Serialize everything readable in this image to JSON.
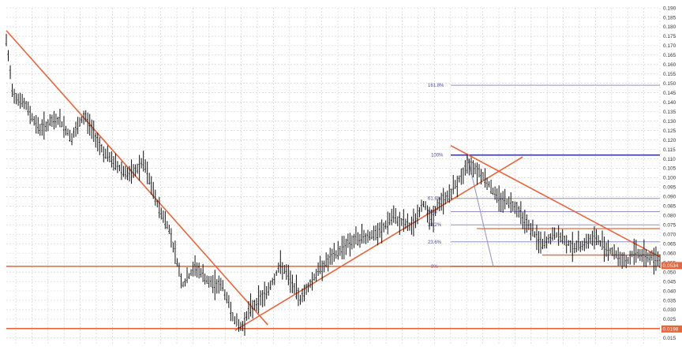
{
  "chart_data": {
    "type": "ohlc",
    "title": "",
    "xlabel": "",
    "ylabel": "",
    "ylim": [
      0.012,
      0.19
    ],
    "grid": true,
    "y_ticks": [
      0.19,
      0.185,
      0.18,
      0.175,
      0.17,
      0.165,
      0.16,
      0.155,
      0.15,
      0.145,
      0.14,
      0.135,
      0.13,
      0.125,
      0.12,
      0.115,
      0.11,
      0.105,
      0.1,
      0.095,
      0.09,
      0.085,
      0.08,
      0.075,
      0.07,
      0.065,
      0.06,
      0.055,
      0.05,
      0.045,
      0.04,
      0.035,
      0.03,
      0.025,
      0.02,
      0.015
    ],
    "y_tick_labels": [
      "0.190",
      "0.185",
      "0.180",
      "0.175",
      "0.170",
      "0.165",
      "0.160",
      "0.155",
      "0.150",
      "0.145",
      "0.140",
      "0.135",
      "0.130",
      "0.125",
      "0.120",
      "0.115",
      "0.110",
      "0.105",
      "0.100",
      "0.095",
      "0.090",
      "0.085",
      "0.080",
      "0.075",
      "0.070",
      "0.065",
      "0.060",
      "0.055",
      "0.050",
      "0.045",
      "0.040",
      "0.035",
      "0.030",
      "0.025",
      "0.020",
      "0.015"
    ],
    "price_path_index": [
      0,
      1,
      3,
      5,
      8,
      10,
      12,
      15,
      17,
      19,
      21,
      23,
      25,
      27,
      29,
      31,
      33,
      35,
      36,
      37,
      40,
      42,
      45,
      48,
      50,
      52,
      55,
      57,
      59,
      62,
      64,
      65,
      66,
      68,
      71,
      73,
      75,
      78,
      80,
      82,
      84,
      87,
      90,
      93,
      95,
      96,
      98,
      100
    ],
    "price_path_value": [
      0.172,
      0.145,
      0.138,
      0.126,
      0.131,
      0.121,
      0.133,
      0.113,
      0.106,
      0.101,
      0.108,
      0.087,
      0.072,
      0.043,
      0.053,
      0.044,
      0.043,
      0.024,
      0.02,
      0.029,
      0.04,
      0.054,
      0.036,
      0.052,
      0.058,
      0.065,
      0.069,
      0.07,
      0.079,
      0.074,
      0.087,
      0.077,
      0.085,
      0.092,
      0.108,
      0.101,
      0.09,
      0.085,
      0.074,
      0.064,
      0.07,
      0.063,
      0.068,
      0.06,
      0.055,
      0.061,
      0.058,
      0.057
    ],
    "trendlines": [
      {
        "from_index": 0,
        "from_value": 0.178,
        "to_index": 40,
        "to_value": 0.022
      },
      {
        "from_index": 35,
        "from_value": 0.019,
        "to_index": 79,
        "to_value": 0.111
      },
      {
        "from_index": 68,
        "from_value": 0.117,
        "to_index": 100,
        "to_value": 0.058
      }
    ],
    "support_lines": [
      0.053,
      0.02,
      0.059
    ],
    "resistance_lines": [
      0.112,
      0.073
    ],
    "fibonacci": [
      {
        "label": "161.8%",
        "value": 0.149
      },
      {
        "label": "100%",
        "value": 0.112
      },
      {
        "label": "61.8%",
        "value": 0.089
      },
      {
        "label": "50%",
        "value": 0.082
      },
      {
        "label": "38.2%",
        "value": 0.075
      },
      {
        "label": "23.6%",
        "value": 0.066
      },
      {
        "label": "0%",
        "value": 0.053
      }
    ],
    "price_badges": [
      {
        "label": "0.0534",
        "value": 0.0534
      },
      {
        "label": "0.0198",
        "value": 0.0198
      }
    ],
    "colors": {
      "trend": "#e8643c",
      "support": "#e8643c",
      "fib": "#3a3a96",
      "fib_light": "#9090c8",
      "price": "#111111",
      "badge": "#e8643c",
      "grid": "#cdcdcd"
    }
  }
}
